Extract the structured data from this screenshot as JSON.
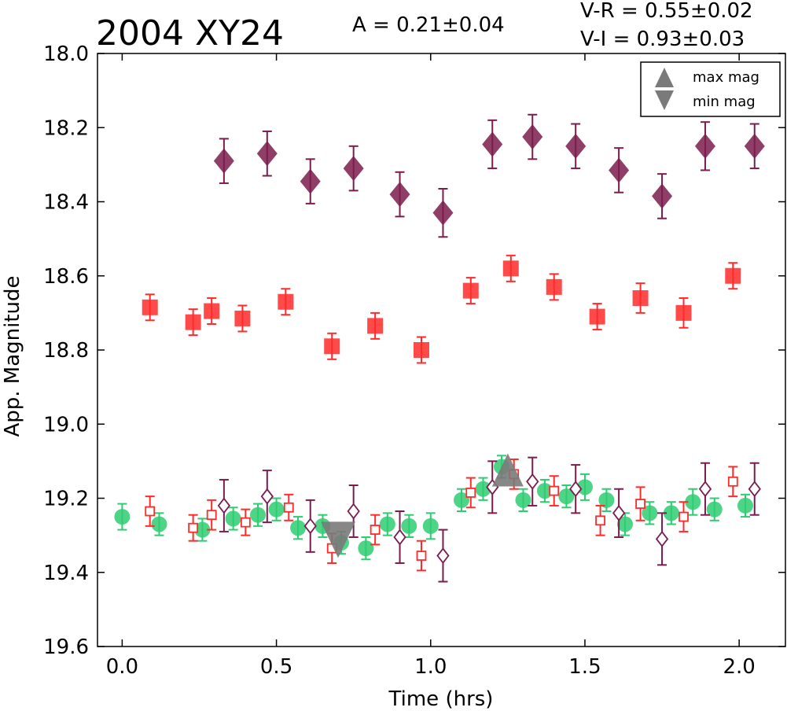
{
  "chart_data": {
    "type": "scatter",
    "title": "2004 XY24",
    "amplitude_label": "A  = 0.21±0.04",
    "color_labels": [
      "V-R = 0.55±0.02",
      "V-I  = 0.93±0.03"
    ],
    "xlabel": "Time (hrs)",
    "ylabel": "App. Magnitude",
    "xlim": [
      -0.08,
      2.15
    ],
    "ylim": [
      19.6,
      18.0
    ],
    "y_inverted": true,
    "xticks": [
      0.0,
      0.5,
      1.0,
      1.5,
      2.0
    ],
    "xtick_labels": [
      "0.0",
      "0.5",
      "1.0",
      "1.5",
      "2.0"
    ],
    "yticks": [
      18.0,
      18.2,
      18.4,
      18.6,
      18.8,
      19.0,
      19.2,
      19.4,
      19.6
    ],
    "ytick_labels": [
      "18.0",
      "18.2",
      "18.4",
      "18.6",
      "18.8",
      "19.0",
      "19.2",
      "19.4",
      "19.6"
    ],
    "grid": false,
    "legend": {
      "placement": "top-right",
      "entries": [
        {
          "label": "max mag",
          "marker": "triangle-up",
          "color": "#7a7a7a"
        },
        {
          "label": "min mag",
          "marker": "triangle-down",
          "color": "#7a7a7a"
        }
      ]
    },
    "series": [
      {
        "marker": "diamond",
        "color": "#7b1c4e",
        "filled": true,
        "points": [
          {
            "x": 0.33,
            "y": 18.29,
            "err": 0.06
          },
          {
            "x": 0.47,
            "y": 18.27,
            "err": 0.06
          },
          {
            "x": 0.61,
            "y": 18.345,
            "err": 0.06
          },
          {
            "x": 0.75,
            "y": 18.31,
            "err": 0.06
          },
          {
            "x": 0.9,
            "y": 18.38,
            "err": 0.06
          },
          {
            "x": 1.04,
            "y": 18.43,
            "err": 0.065
          },
          {
            "x": 1.2,
            "y": 18.245,
            "err": 0.065
          },
          {
            "x": 1.33,
            "y": 18.225,
            "err": 0.06
          },
          {
            "x": 1.47,
            "y": 18.25,
            "err": 0.06
          },
          {
            "x": 1.61,
            "y": 18.315,
            "err": 0.06
          },
          {
            "x": 1.75,
            "y": 18.385,
            "err": 0.06
          },
          {
            "x": 1.89,
            "y": 18.25,
            "err": 0.065
          },
          {
            "x": 2.05,
            "y": 18.25,
            "err": 0.06
          }
        ]
      },
      {
        "marker": "square",
        "color": "#ff2a2a",
        "filled": true,
        "points": [
          {
            "x": 0.09,
            "y": 18.685,
            "err": 0.035
          },
          {
            "x": 0.23,
            "y": 18.725,
            "err": 0.035
          },
          {
            "x": 0.29,
            "y": 18.695,
            "err": 0.035
          },
          {
            "x": 0.39,
            "y": 18.715,
            "err": 0.035
          },
          {
            "x": 0.53,
            "y": 18.67,
            "err": 0.035
          },
          {
            "x": 0.68,
            "y": 18.79,
            "err": 0.035
          },
          {
            "x": 0.82,
            "y": 18.735,
            "err": 0.035
          },
          {
            "x": 0.97,
            "y": 18.8,
            "err": 0.035
          },
          {
            "x": 1.13,
            "y": 18.64,
            "err": 0.035
          },
          {
            "x": 1.26,
            "y": 18.58,
            "err": 0.035
          },
          {
            "x": 1.4,
            "y": 18.63,
            "err": 0.035
          },
          {
            "x": 1.54,
            "y": 18.71,
            "err": 0.035
          },
          {
            "x": 1.68,
            "y": 18.66,
            "err": 0.04
          },
          {
            "x": 1.82,
            "y": 18.7,
            "err": 0.04
          },
          {
            "x": 1.98,
            "y": 18.6,
            "err": 0.035
          }
        ]
      },
      {
        "marker": "circle",
        "color": "#2ecc71",
        "filled": true,
        "points": [
          {
            "x": 0.0,
            "y": 19.25,
            "err": 0.035
          },
          {
            "x": 0.12,
            "y": 19.27,
            "err": 0.03
          },
          {
            "x": 0.26,
            "y": 19.285,
            "err": 0.03
          },
          {
            "x": 0.36,
            "y": 19.255,
            "err": 0.03
          },
          {
            "x": 0.44,
            "y": 19.245,
            "err": 0.03
          },
          {
            "x": 0.5,
            "y": 19.23,
            "err": 0.03
          },
          {
            "x": 0.57,
            "y": 19.28,
            "err": 0.03
          },
          {
            "x": 0.65,
            "y": 19.275,
            "err": 0.03
          },
          {
            "x": 0.71,
            "y": 19.32,
            "err": 0.03
          },
          {
            "x": 0.79,
            "y": 19.335,
            "err": 0.03
          },
          {
            "x": 0.86,
            "y": 19.27,
            "err": 0.03
          },
          {
            "x": 0.93,
            "y": 19.275,
            "err": 0.03
          },
          {
            "x": 1.0,
            "y": 19.275,
            "err": 0.035
          },
          {
            "x": 1.1,
            "y": 19.205,
            "err": 0.03
          },
          {
            "x": 1.17,
            "y": 19.175,
            "err": 0.03
          },
          {
            "x": 1.23,
            "y": 19.115,
            "err": 0.03
          },
          {
            "x": 1.3,
            "y": 19.205,
            "err": 0.03
          },
          {
            "x": 1.37,
            "y": 19.18,
            "err": 0.03
          },
          {
            "x": 1.44,
            "y": 19.195,
            "err": 0.03
          },
          {
            "x": 1.5,
            "y": 19.17,
            "err": 0.035
          },
          {
            "x": 1.57,
            "y": 19.205,
            "err": 0.03
          },
          {
            "x": 1.63,
            "y": 19.27,
            "err": 0.03
          },
          {
            "x": 1.71,
            "y": 19.24,
            "err": 0.03
          },
          {
            "x": 1.78,
            "y": 19.24,
            "err": 0.03
          },
          {
            "x": 1.85,
            "y": 19.21,
            "err": 0.035
          },
          {
            "x": 1.92,
            "y": 19.23,
            "err": 0.03
          },
          {
            "x": 2.02,
            "y": 19.22,
            "err": 0.03
          }
        ]
      },
      {
        "marker": "square",
        "color": "#ff2a2a",
        "filled": false,
        "points": [
          {
            "x": 0.09,
            "y": 19.235,
            "err": 0.04
          },
          {
            "x": 0.23,
            "y": 19.28,
            "err": 0.035
          },
          {
            "x": 0.29,
            "y": 19.245,
            "err": 0.04
          },
          {
            "x": 0.4,
            "y": 19.265,
            "err": 0.035
          },
          {
            "x": 0.54,
            "y": 19.225,
            "err": 0.035
          },
          {
            "x": 0.68,
            "y": 19.335,
            "err": 0.04
          },
          {
            "x": 0.82,
            "y": 19.285,
            "err": 0.04
          },
          {
            "x": 0.97,
            "y": 19.355,
            "err": 0.04
          },
          {
            "x": 1.13,
            "y": 19.185,
            "err": 0.04
          },
          {
            "x": 1.27,
            "y": 19.135,
            "err": 0.04
          },
          {
            "x": 1.4,
            "y": 19.18,
            "err": 0.04
          },
          {
            "x": 1.55,
            "y": 19.26,
            "err": 0.04
          },
          {
            "x": 1.68,
            "y": 19.215,
            "err": 0.045
          },
          {
            "x": 1.82,
            "y": 19.25,
            "err": 0.04
          },
          {
            "x": 1.98,
            "y": 19.155,
            "err": 0.04
          }
        ]
      },
      {
        "marker": "diamond",
        "color": "#7b1c4e",
        "filled": false,
        "points": [
          {
            "x": 0.33,
            "y": 19.22,
            "err": 0.07
          },
          {
            "x": 0.47,
            "y": 19.195,
            "err": 0.07
          },
          {
            "x": 0.61,
            "y": 19.275,
            "err": 0.07
          },
          {
            "x": 0.75,
            "y": 19.235,
            "err": 0.07
          },
          {
            "x": 0.9,
            "y": 19.305,
            "err": 0.07
          },
          {
            "x": 1.04,
            "y": 19.355,
            "err": 0.07
          },
          {
            "x": 1.2,
            "y": 19.17,
            "err": 0.07
          },
          {
            "x": 1.33,
            "y": 19.155,
            "err": 0.065
          },
          {
            "x": 1.47,
            "y": 19.175,
            "err": 0.065
          },
          {
            "x": 1.61,
            "y": 19.24,
            "err": 0.065
          },
          {
            "x": 1.75,
            "y": 19.31,
            "err": 0.07
          },
          {
            "x": 1.89,
            "y": 19.175,
            "err": 0.07
          },
          {
            "x": 2.05,
            "y": 19.175,
            "err": 0.07
          }
        ]
      }
    ],
    "extrema": [
      {
        "type": "min",
        "marker": "triangle-down",
        "x": 0.7,
        "y": 19.31,
        "color": "#7a7a7a"
      },
      {
        "type": "max",
        "marker": "triangle-up",
        "x": 1.25,
        "y": 19.13,
        "color": "#7a7a7a"
      }
    ]
  }
}
